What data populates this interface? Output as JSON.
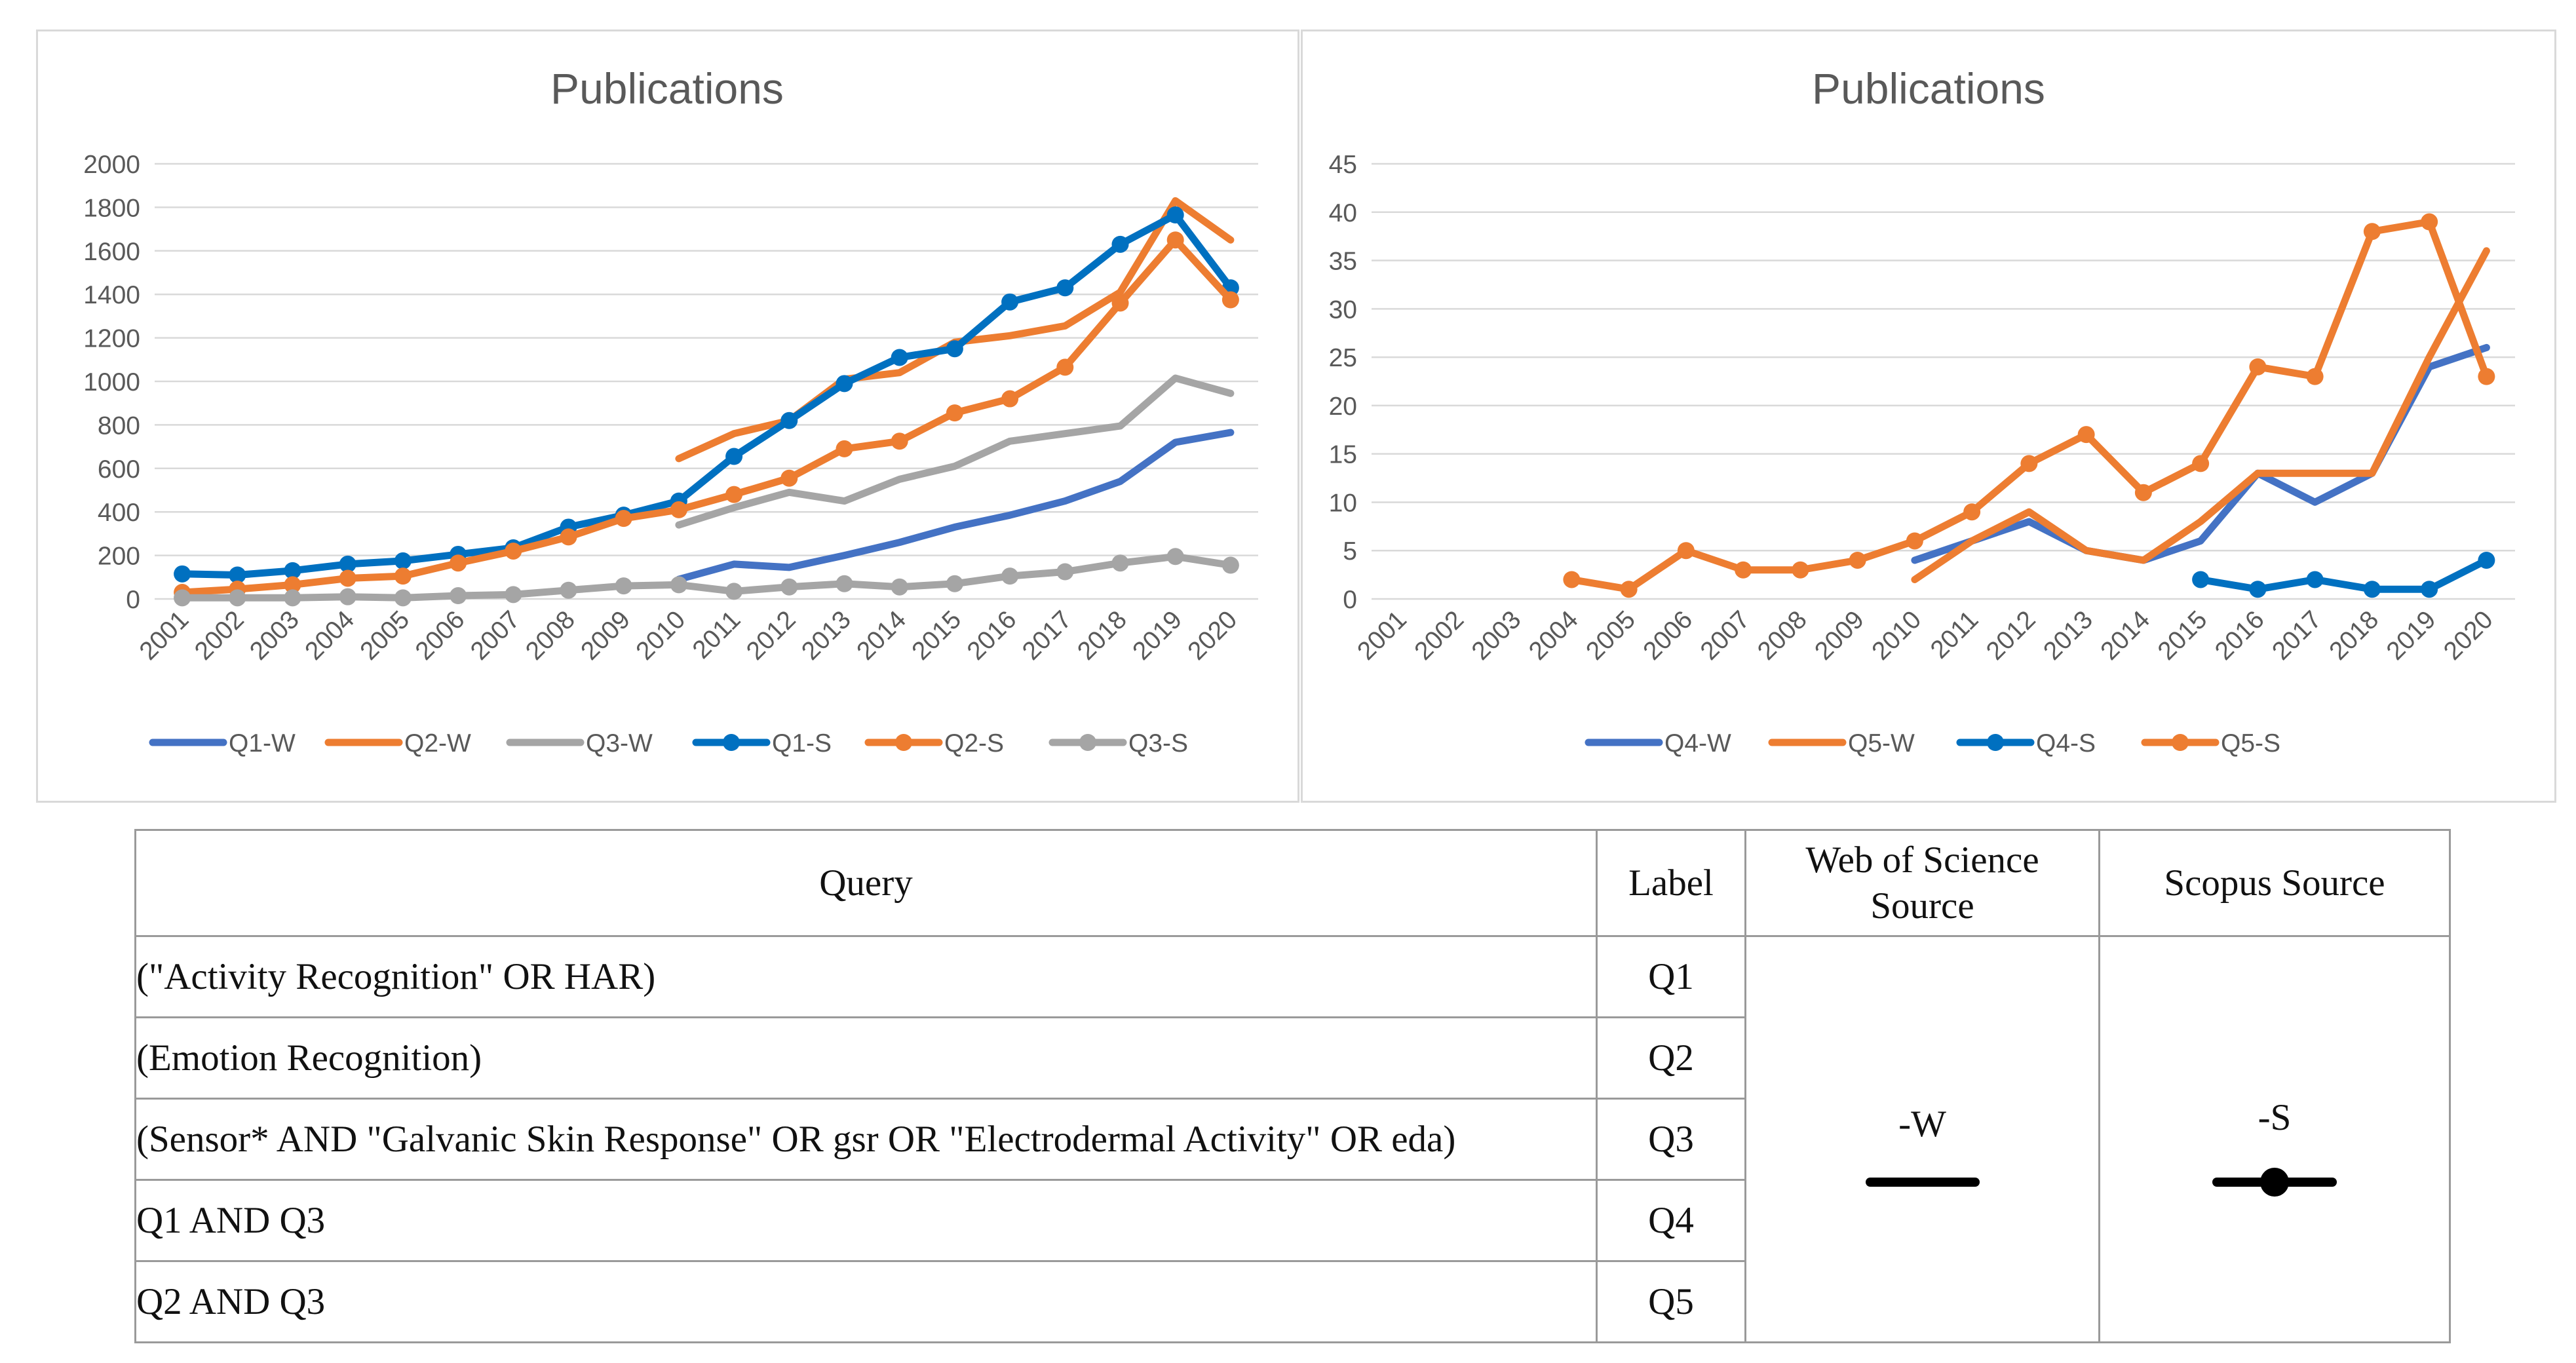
{
  "charts": {
    "left": {
      "title": "Publications"
    },
    "right": {
      "title": "Publications"
    }
  },
  "chart_data": [
    {
      "type": "line",
      "title": "Publications",
      "xlabel": "",
      "ylabel": "",
      "x": [
        "2001",
        "2002",
        "2003",
        "2004",
        "2005",
        "2006",
        "2007",
        "2008",
        "2009",
        "2010",
        "2011",
        "2012",
        "2013",
        "2014",
        "2015",
        "2016",
        "2017",
        "2018",
        "2019",
        "2020"
      ],
      "ylim": [
        0,
        2000
      ],
      "yticks": [
        0,
        200,
        400,
        600,
        800,
        1000,
        1200,
        1400,
        1600,
        1800,
        2000
      ],
      "grid": true,
      "legend_position": "bottom",
      "series": [
        {
          "name": "Q1-W",
          "color": "#4472c4",
          "markers": false,
          "values": [
            null,
            null,
            null,
            null,
            null,
            null,
            null,
            null,
            null,
            90,
            160,
            145,
            200,
            260,
            330,
            385,
            450,
            540,
            720,
            765
          ]
        },
        {
          "name": "Q2-W",
          "color": "#ed7d31",
          "markers": false,
          "values": [
            null,
            null,
            null,
            null,
            null,
            null,
            null,
            null,
            null,
            645,
            760,
            820,
            1010,
            1040,
            1180,
            1210,
            1255,
            1410,
            1830,
            1650
          ]
        },
        {
          "name": "Q3-W",
          "color": "#a5a5a5",
          "markers": false,
          "values": [
            null,
            null,
            null,
            null,
            null,
            null,
            null,
            null,
            null,
            340,
            420,
            490,
            450,
            550,
            610,
            725,
            760,
            795,
            1015,
            945
          ]
        },
        {
          "name": "Q1-S",
          "color": "#0070c0",
          "markers": true,
          "values": [
            115,
            110,
            130,
            160,
            175,
            205,
            235,
            330,
            385,
            450,
            655,
            820,
            990,
            1110,
            1150,
            1365,
            1430,
            1630,
            1765,
            1430
          ]
        },
        {
          "name": "Q2-S",
          "color": "#ed7d31",
          "markers": true,
          "values": [
            30,
            45,
            65,
            95,
            105,
            165,
            220,
            285,
            370,
            410,
            480,
            555,
            690,
            725,
            855,
            920,
            1065,
            1360,
            1650,
            1375
          ]
        },
        {
          "name": "Q3-S",
          "color": "#a5a5a5",
          "markers": true,
          "values": [
            5,
            5,
            5,
            10,
            5,
            15,
            20,
            40,
            60,
            65,
            35,
            55,
            70,
            55,
            70,
            105,
            125,
            165,
            195,
            155
          ]
        }
      ]
    },
    {
      "type": "line",
      "title": "Publications",
      "xlabel": "",
      "ylabel": "",
      "x": [
        "2001",
        "2002",
        "2003",
        "2004",
        "2005",
        "2006",
        "2007",
        "2008",
        "2009",
        "2010",
        "2011",
        "2012",
        "2013",
        "2014",
        "2015",
        "2016",
        "2017",
        "2018",
        "2019",
        "2020"
      ],
      "ylim": [
        0,
        45
      ],
      "yticks": [
        0,
        5,
        10,
        15,
        20,
        25,
        30,
        35,
        40,
        45
      ],
      "grid": true,
      "legend_position": "bottom",
      "series": [
        {
          "name": "Q4-W",
          "color": "#4472c4",
          "markers": false,
          "values": [
            null,
            null,
            null,
            null,
            null,
            null,
            null,
            null,
            null,
            4,
            6,
            8,
            5,
            4,
            6,
            13,
            10,
            13,
            24,
            26
          ]
        },
        {
          "name": "Q5-W",
          "color": "#ed7d31",
          "markers": false,
          "values": [
            null,
            null,
            null,
            null,
            null,
            null,
            null,
            null,
            null,
            2,
            6,
            9,
            5,
            4,
            8,
            13,
            13,
            13,
            25,
            36
          ]
        },
        {
          "name": "Q4-S",
          "color": "#0070c0",
          "markers": true,
          "values": [
            null,
            null,
            null,
            null,
            null,
            null,
            null,
            null,
            null,
            null,
            null,
            null,
            null,
            null,
            2,
            1,
            2,
            1,
            1,
            4
          ]
        },
        {
          "name": "Q5-S",
          "color": "#ed7d31",
          "markers": true,
          "values": [
            null,
            null,
            null,
            2,
            1,
            5,
            3,
            3,
            4,
            6,
            9,
            14,
            17,
            11,
            14,
            24,
            23,
            38,
            39,
            23
          ]
        }
      ]
    }
  ],
  "table": {
    "headers": {
      "query": "Query",
      "label": "Label",
      "wos": "Web of Science Source",
      "scopus": "Scopus Source"
    },
    "rows": [
      {
        "query": "(\"Activity Recognition\" OR HAR)",
        "label": "Q1"
      },
      {
        "query": "(Emotion Recognition)",
        "label": "Q2"
      },
      {
        "query": "(Sensor* AND \"Galvanic Skin Response\" OR gsr OR \"Electrodermal Activity\" OR eda)",
        "label": "Q3"
      },
      {
        "query": "Q1 AND Q3",
        "label": "Q4"
      },
      {
        "query": "Q2 AND Q3",
        "label": "Q5"
      }
    ],
    "wos_suffix": "-W",
    "scopus_suffix": "-S",
    "line_color": "#000000"
  }
}
